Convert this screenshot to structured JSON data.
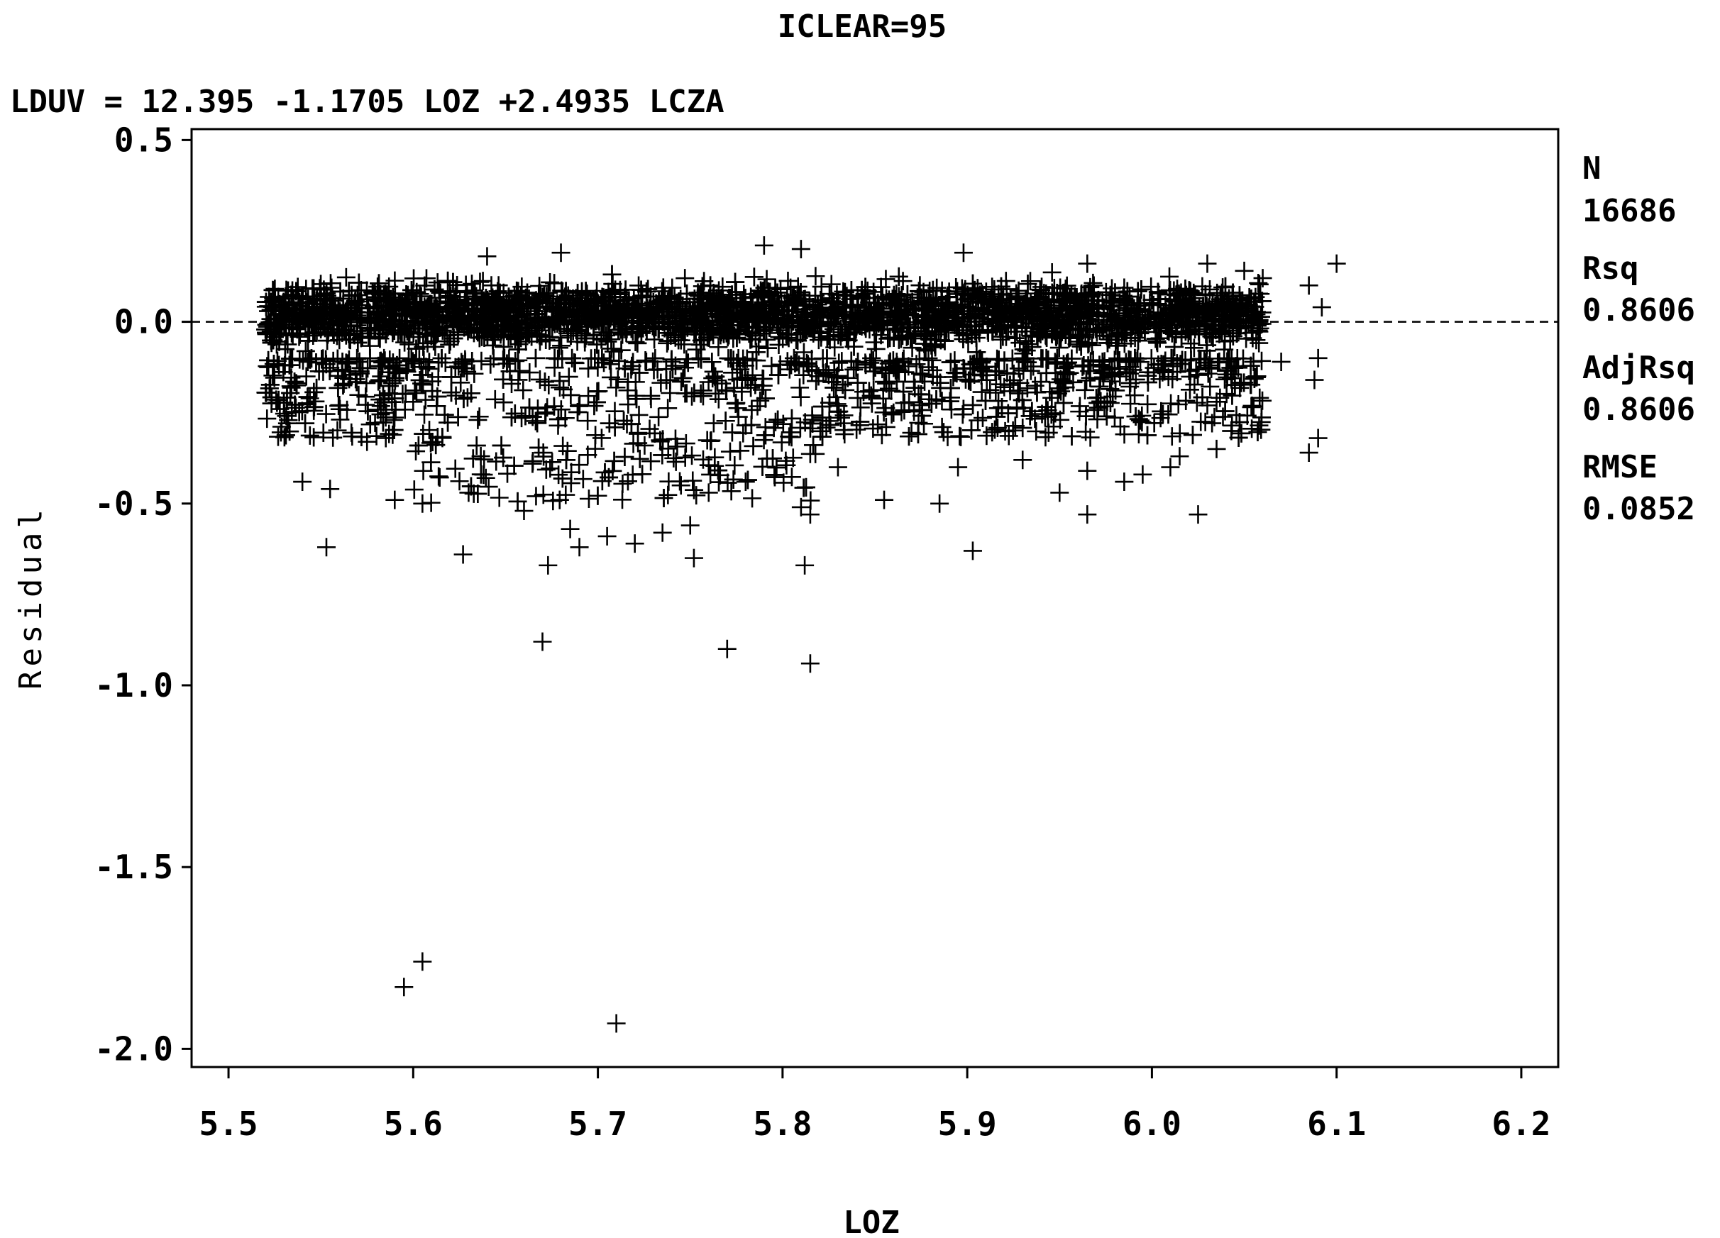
{
  "chart_data": {
    "type": "scatter",
    "title": "ICLEAR=95",
    "subtitle": "LDUV = 12.395 -1.1705 LOZ +2.4935 LCZA",
    "xlabel": "LOZ",
    "ylabel": "Residual",
    "xlim": [
      5.48,
      6.22
    ],
    "ylim": [
      -2.05,
      0.53
    ],
    "x_ticks": [
      "5.5",
      "5.6",
      "5.7",
      "5.8",
      "5.9",
      "6.0",
      "6.1",
      "6.2"
    ],
    "y_ticks": [
      "0.5",
      "0.0",
      "-0.5",
      "-1.0",
      "-1.5",
      "-2.0"
    ],
    "reference_line": {
      "y": 0,
      "style": "dashed"
    },
    "marker": "plus",
    "color": "#000000",
    "stats": [
      {
        "label": "N",
        "value": "16686"
      },
      {
        "label": "Rsq",
        "value": "0.8606"
      },
      {
        "label": "AdjRsq",
        "value": "0.8606"
      },
      {
        "label": "RMSE",
        "value": "0.0852"
      }
    ],
    "points": [
      [
        5.595,
        -1.83
      ],
      [
        5.605,
        -1.76
      ],
      [
        5.71,
        -1.93
      ],
      [
        5.67,
        -0.88
      ],
      [
        5.77,
        -0.9
      ],
      [
        5.815,
        -0.94
      ],
      [
        5.553,
        -0.62
      ],
      [
        5.627,
        -0.64
      ],
      [
        5.673,
        -0.67
      ],
      [
        5.752,
        -0.65
      ],
      [
        5.812,
        -0.67
      ],
      [
        5.903,
        -0.63
      ],
      [
        5.54,
        -0.44
      ],
      [
        5.555,
        -0.46
      ],
      [
        5.59,
        -0.49
      ],
      [
        5.605,
        -0.5
      ],
      [
        5.63,
        -0.47
      ],
      [
        5.66,
        -0.52
      ],
      [
        5.685,
        -0.57
      ],
      [
        5.69,
        -0.62
      ],
      [
        5.705,
        -0.59
      ],
      [
        5.72,
        -0.61
      ],
      [
        5.735,
        -0.58
      ],
      [
        5.75,
        -0.56
      ],
      [
        5.745,
        -0.45
      ],
      [
        5.76,
        -0.47
      ],
      [
        5.78,
        -0.44
      ],
      [
        5.81,
        -0.51
      ],
      [
        5.815,
        -0.53
      ],
      [
        5.83,
        -0.4
      ],
      [
        5.855,
        -0.49
      ],
      [
        5.885,
        -0.5
      ],
      [
        5.895,
        -0.4
      ],
      [
        5.93,
        -0.38
      ],
      [
        5.95,
        -0.47
      ],
      [
        5.965,
        -0.53
      ],
      [
        5.965,
        -0.41
      ],
      [
        5.985,
        -0.44
      ],
      [
        5.995,
        -0.42
      ],
      [
        6.01,
        -0.4
      ],
      [
        6.015,
        -0.37
      ],
      [
        6.025,
        -0.53
      ],
      [
        6.035,
        -0.35
      ],
      [
        6.035,
        -0.22
      ],
      [
        6.03,
        -0.23
      ],
      [
        6.055,
        -0.11
      ],
      [
        6.07,
        -0.11
      ],
      [
        6.085,
        -0.36
      ],
      [
        6.09,
        -0.32
      ],
      [
        6.088,
        -0.16
      ],
      [
        6.09,
        -0.1
      ],
      [
        6.085,
        0.1
      ],
      [
        6.092,
        0.04
      ],
      [
        6.1,
        0.16
      ],
      [
        6.03,
        0.16
      ],
      [
        6.05,
        0.14
      ],
      [
        6.06,
        0.12
      ],
      [
        5.79,
        0.21
      ],
      [
        5.81,
        0.2
      ],
      [
        5.898,
        0.19
      ],
      [
        5.68,
        0.19
      ],
      [
        5.64,
        0.18
      ],
      [
        5.965,
        0.16
      ],
      [
        5.6,
        -0.22
      ],
      [
        5.635,
        -0.27
      ],
      [
        5.575,
        -0.33
      ]
    ],
    "cloud": {
      "x_range": [
        5.52,
        6.06
      ],
      "band_center": 0.02,
      "band_halfwidth": 0.12,
      "lower_tail": -0.5,
      "point_count": 5200
    }
  }
}
